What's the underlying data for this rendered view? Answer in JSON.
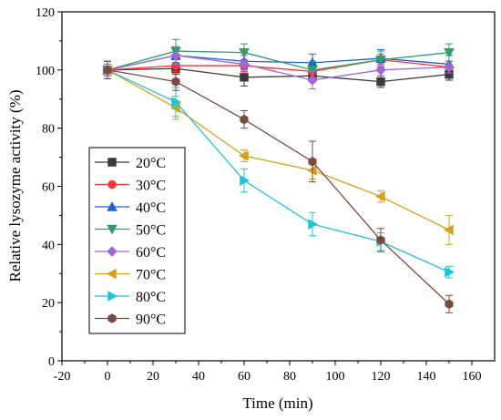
{
  "chart_data": {
    "type": "line",
    "xlabel": "Time (min)",
    "ylabel": "Relative lysozyme activity (%)",
    "xlim": [
      -20,
      170
    ],
    "ylim": [
      0,
      120
    ],
    "xticks": [
      -20,
      0,
      20,
      40,
      60,
      80,
      100,
      120,
      140,
      160
    ],
    "yticks": [
      0,
      20,
      40,
      60,
      80,
      100,
      120
    ],
    "grid": false,
    "legend_position": "left",
    "x": [
      0,
      30,
      60,
      90,
      120,
      150
    ],
    "series": [
      {
        "name": "20°C",
        "color": "#3a3a3a",
        "marker": "square",
        "values": [
          100,
          100.5,
          97.5,
          98,
          96,
          98.5
        ],
        "errors": [
          2,
          2,
          3,
          2,
          2,
          2
        ]
      },
      {
        "name": "30°C",
        "color": "#ff3333",
        "marker": "circle",
        "values": [
          100,
          101.5,
          101.5,
          99.5,
          103.5,
          101
        ],
        "errors": [
          2,
          2,
          2,
          2,
          2,
          2
        ]
      },
      {
        "name": "40°C",
        "color": "#1f5fd6",
        "marker": "triangle-up",
        "values": [
          100,
          105,
          103,
          102.5,
          104,
          102
        ],
        "errors": [
          3,
          3,
          3,
          3,
          3,
          3
        ]
      },
      {
        "name": "50°C",
        "color": "#2f9f6a",
        "marker": "triangle-down",
        "values": [
          100,
          106.5,
          106,
          100,
          103.5,
          106
        ],
        "errors": [
          3,
          4,
          3,
          3,
          3,
          3
        ]
      },
      {
        "name": "60°C",
        "color": "#a266d9",
        "marker": "diamond",
        "values": [
          100,
          105,
          102,
          96.5,
          100,
          101
        ],
        "errors": [
          2,
          3,
          3,
          3,
          2,
          2
        ]
      },
      {
        "name": "70°C",
        "color": "#d4a21a",
        "marker": "triangle-left",
        "values": [
          100,
          87,
          70.5,
          65.5,
          56.5,
          45
        ],
        "errors": [
          3,
          4,
          2,
          3,
          2,
          5
        ]
      },
      {
        "name": "80°C",
        "color": "#1fc4d6",
        "marker": "triangle-right",
        "values": [
          100,
          89,
          62,
          47,
          41,
          30.5
        ],
        "errors": [
          3,
          5,
          4,
          4,
          3,
          2
        ]
      },
      {
        "name": "90°C",
        "color": "#7a4a40",
        "marker": "hexagon",
        "values": [
          100,
          96,
          83,
          68.5,
          41.5,
          19.5
        ],
        "errors": [
          3,
          3,
          3,
          7,
          4,
          3
        ]
      }
    ]
  }
}
